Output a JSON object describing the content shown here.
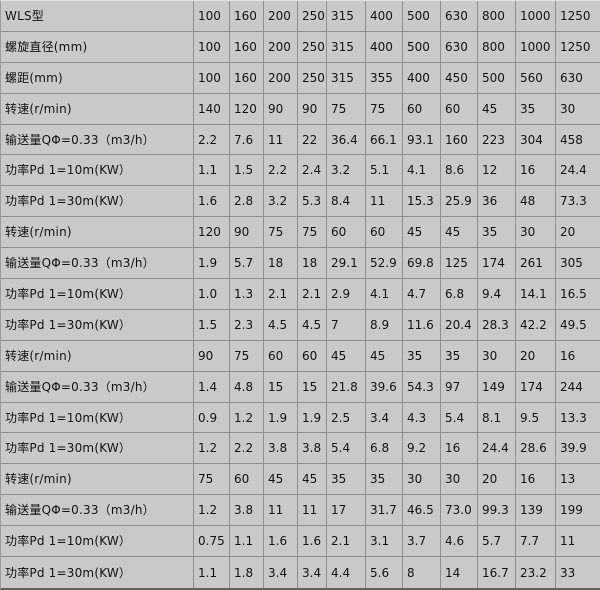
{
  "colors": {
    "cell_bg": "#c9c9c9",
    "grid_line": "#8e8e8e",
    "outer_border_dark": "#5f5f5f",
    "text": "#131313"
  },
  "chart_data": {
    "type": "table",
    "description_note": "Specification grid: first row is the model header row, remaining rows are parameters per model size",
    "rows": [
      {
        "label": "WLS型",
        "values": [
          "100",
          "160",
          "200",
          "250",
          "315",
          "400",
          "500",
          "630",
          "800",
          "1000",
          "1250"
        ]
      },
      {
        "label": "螺旋直径(mm)",
        "values": [
          "100",
          "160",
          "200",
          "250",
          "315",
          "400",
          "500",
          "630",
          "800",
          "1000",
          "1250"
        ]
      },
      {
        "label": "螺距(mm)",
        "values": [
          "100",
          "160",
          "200",
          "250",
          "315",
          "355",
          "400",
          "450",
          "500",
          "560",
          "630"
        ]
      },
      {
        "label": "转速(r/min)",
        "values": [
          "140",
          "120",
          "90",
          "90",
          "75",
          "75",
          "60",
          "60",
          "45",
          "35",
          "30"
        ]
      },
      {
        "label": "输送量QΦ=0.33（m3/h）",
        "values": [
          "2.2",
          "7.6",
          "11",
          "22",
          "36.4",
          "66.1",
          "93.1",
          "160",
          "223",
          "304",
          "458"
        ]
      },
      {
        "label": "功率Pd 1=10m(KW）",
        "values": [
          "1.1",
          "1.5",
          "2.2",
          "2.4",
          "3.2",
          "5.1",
          "4.1",
          "8.6",
          "12",
          "16",
          "24.4"
        ]
      },
      {
        "label": "功率Pd 1=30m(KW）",
        "values": [
          "1.6",
          "2.8",
          "3.2",
          "5.3",
          "8.4",
          "11",
          "15.3",
          "25.9",
          "36",
          "48",
          "73.3"
        ]
      },
      {
        "label": "转速(r/min)",
        "values": [
          "120",
          "90",
          "75",
          "75",
          "60",
          "60",
          "45",
          "45",
          "35",
          "30",
          "20"
        ]
      },
      {
        "label": "输送量QΦ=0.33（m3/h）",
        "values": [
          "1.9",
          "5.7",
          "18",
          "18",
          "29.1",
          "52.9",
          "69.8",
          "125",
          "174",
          "261",
          "305"
        ]
      },
      {
        "label": "功率Pd 1=10m(KW）",
        "values": [
          "1.0",
          "1.3",
          "2.1",
          "2.1",
          "2.9",
          "4.1",
          "4.7",
          "6.8",
          "9.4",
          "14.1",
          "16.5"
        ]
      },
      {
        "label": "功率Pd 1=30m(KW）",
        "values": [
          "1.5",
          "2.3",
          "4.5",
          "4.5",
          "7",
          "8.9",
          "11.6",
          "20.4",
          "28.3",
          "42.2",
          "49.5"
        ]
      },
      {
        "label": "转速(r/min)",
        "values": [
          "90",
          "75",
          "60",
          "60",
          "45",
          "45",
          "35",
          "35",
          "30",
          "20",
          "16"
        ]
      },
      {
        "label": "输送量QΦ=0.33（m3/h）",
        "values": [
          "1.4",
          "4.8",
          "15",
          "15",
          "21.8",
          "39.6",
          "54.3",
          "97",
          "149",
          "174",
          "244"
        ]
      },
      {
        "label": "功率Pd 1=10m(KW）",
        "values": [
          "0.9",
          "1.2",
          "1.9",
          "1.9",
          "2.5",
          "3.4",
          "4.3",
          "5.4",
          "8.1",
          "9.5",
          "13.3"
        ]
      },
      {
        "label": "功率Pd 1=30m(KW）",
        "values": [
          "1.2",
          "2.2",
          "3.8",
          "3.8",
          "5.4",
          "6.8",
          "9.2",
          "16",
          "24.4",
          "28.6",
          "39.9"
        ]
      },
      {
        "label": "转速(r/min)",
        "values": [
          "75",
          "60",
          "45",
          "45",
          "35",
          "35",
          "30",
          "30",
          "20",
          "16",
          "13"
        ]
      },
      {
        "label": "输送量QΦ=0.33（m3/h）",
        "values": [
          "1.2",
          "3.8",
          "11",
          "11",
          "17",
          "31.7",
          "46.5",
          "73.0",
          "99.3",
          "139",
          "199"
        ]
      },
      {
        "label": "功率Pd 1=10m(KW）",
        "values": [
          "0.75",
          "1.1",
          "1.6",
          "1.6",
          "2.1",
          "3.1",
          "3.7",
          "4.6",
          "5.7",
          "7.7",
          "11"
        ]
      },
      {
        "label": "功率Pd 1=30m(KW）",
        "values": [
          "1.1",
          "1.8",
          "3.4",
          "3.4",
          "4.4",
          "5.6",
          "8",
          "14",
          "16.7",
          "23.2",
          "33"
        ]
      }
    ]
  }
}
